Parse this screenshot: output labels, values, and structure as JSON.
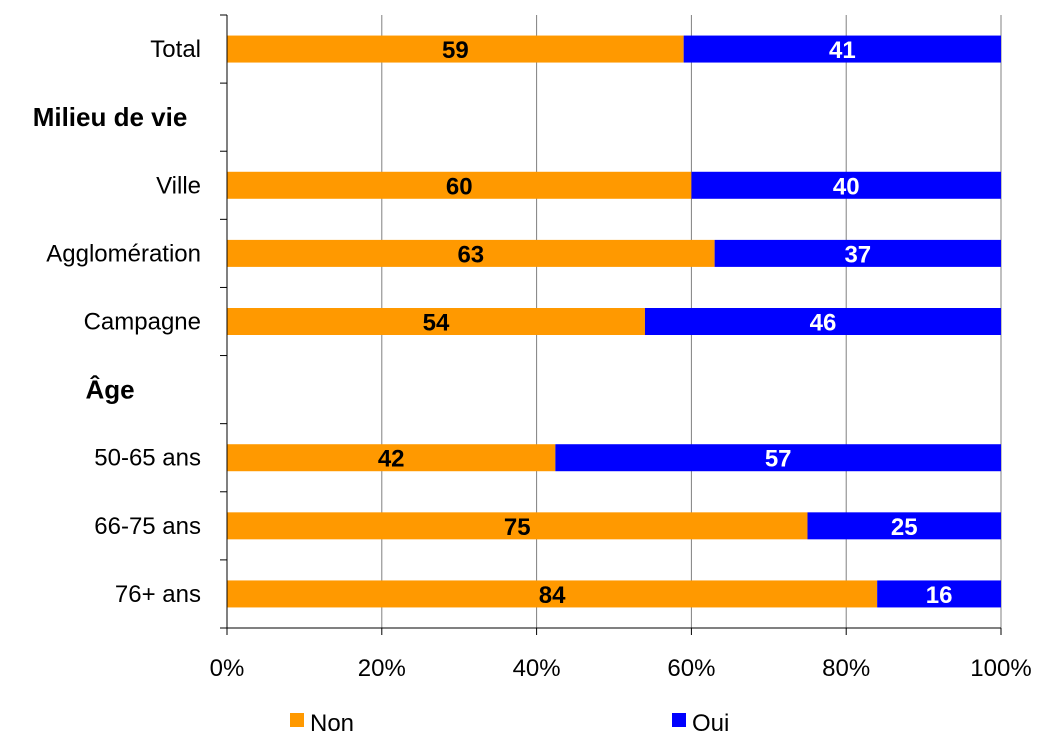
{
  "chart_data": {
    "type": "bar",
    "orientation": "horizontal",
    "stacked": true,
    "categories": [
      "Total",
      "Milieu de vie",
      "Ville",
      "Agglomération",
      "Campagne",
      "Âge",
      "50-65 ans",
      "66-75 ans",
      "76+ ans"
    ],
    "category_kinds": [
      "row",
      "header",
      "row",
      "row",
      "row",
      "header",
      "row",
      "row",
      "row"
    ],
    "series": [
      {
        "name": "Non",
        "color": "#FF9900",
        "label_color": "#000000",
        "values": [
          59,
          null,
          60,
          63,
          54,
          null,
          42,
          75,
          84
        ]
      },
      {
        "name": "Oui",
        "color": "#0000FF",
        "label_color": "#FFFFFF",
        "values": [
          41,
          null,
          40,
          37,
          46,
          null,
          57,
          25,
          16
        ]
      }
    ],
    "xlim": [
      0,
      100
    ],
    "xticks": [
      "0%",
      "20%",
      "40%",
      "60%",
      "80%",
      "100%"
    ],
    "xlabel": "",
    "ylabel": "",
    "grid": "vertical",
    "legend_position": "bottom"
  }
}
